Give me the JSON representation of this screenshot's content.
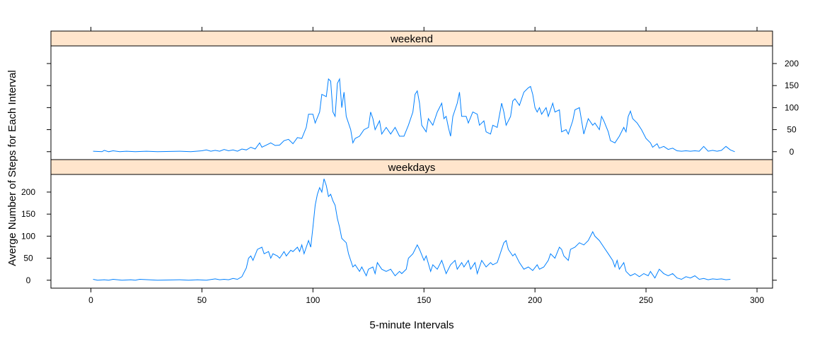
{
  "chart_data": {
    "type": "line",
    "xlabel": "5-minute Intervals",
    "ylabel": "Averge Number of Steps for Each Interval",
    "xlim": [
      -18,
      307
    ],
    "ylim": [
      -18,
      240
    ],
    "x_ticks": [
      0,
      50,
      100,
      150,
      200,
      250,
      300
    ],
    "y_ticks": [
      0,
      50,
      100,
      150,
      200
    ],
    "line_color": "#0080ff",
    "strip_color": "#ffe5cc",
    "panels": [
      {
        "strip_label": "weekend",
        "points": [
          [
            1,
            1
          ],
          [
            5,
            0
          ],
          [
            6,
            3
          ],
          [
            8,
            0
          ],
          [
            10,
            2
          ],
          [
            13,
            0
          ],
          [
            16,
            1
          ],
          [
            20,
            0
          ],
          [
            25,
            1
          ],
          [
            30,
            0
          ],
          [
            40,
            1
          ],
          [
            45,
            0
          ],
          [
            50,
            2
          ],
          [
            52,
            4
          ],
          [
            54,
            1
          ],
          [
            56,
            3
          ],
          [
            58,
            1
          ],
          [
            60,
            5
          ],
          [
            62,
            2
          ],
          [
            64,
            4
          ],
          [
            66,
            1
          ],
          [
            68,
            6
          ],
          [
            70,
            4
          ],
          [
            72,
            10
          ],
          [
            74,
            6
          ],
          [
            76,
            20
          ],
          [
            77,
            10
          ],
          [
            79,
            15
          ],
          [
            81,
            20
          ],
          [
            83,
            14
          ],
          [
            85,
            15
          ],
          [
            87,
            25
          ],
          [
            89,
            28
          ],
          [
            91,
            18
          ],
          [
            93,
            32
          ],
          [
            95,
            30
          ],
          [
            97,
            55
          ],
          [
            98,
            85
          ],
          [
            100,
            85
          ],
          [
            101,
            65
          ],
          [
            103,
            90
          ],
          [
            104,
            130
          ],
          [
            106,
            125
          ],
          [
            107,
            165
          ],
          [
            108,
            160
          ],
          [
            109,
            90
          ],
          [
            110,
            80
          ],
          [
            111,
            155
          ],
          [
            112,
            165
          ],
          [
            113,
            100
          ],
          [
            114,
            135
          ],
          [
            115,
            80
          ],
          [
            117,
            50
          ],
          [
            118,
            20
          ],
          [
            119,
            30
          ],
          [
            121,
            35
          ],
          [
            123,
            50
          ],
          [
            125,
            55
          ],
          [
            126,
            90
          ],
          [
            127,
            75
          ],
          [
            128,
            50
          ],
          [
            130,
            70
          ],
          [
            131,
            40
          ],
          [
            133,
            55
          ],
          [
            135,
            40
          ],
          [
            137,
            55
          ],
          [
            139,
            35
          ],
          [
            141,
            35
          ],
          [
            143,
            60
          ],
          [
            145,
            90
          ],
          [
            146,
            130
          ],
          [
            147,
            138
          ],
          [
            148,
            110
          ],
          [
            149,
            60
          ],
          [
            151,
            45
          ],
          [
            152,
            75
          ],
          [
            154,
            60
          ],
          [
            156,
            90
          ],
          [
            158,
            110
          ],
          [
            159,
            75
          ],
          [
            160,
            80
          ],
          [
            161,
            55
          ],
          [
            162,
            35
          ],
          [
            163,
            80
          ],
          [
            165,
            110
          ],
          [
            166,
            135
          ],
          [
            167,
            80
          ],
          [
            169,
            80
          ],
          [
            170,
            65
          ],
          [
            172,
            90
          ],
          [
            174,
            85
          ],
          [
            175,
            60
          ],
          [
            177,
            70
          ],
          [
            178,
            45
          ],
          [
            180,
            40
          ],
          [
            181,
            60
          ],
          [
            183,
            55
          ],
          [
            185,
            110
          ],
          [
            186,
            90
          ],
          [
            187,
            60
          ],
          [
            189,
            80
          ],
          [
            190,
            115
          ],
          [
            191,
            120
          ],
          [
            193,
            105
          ],
          [
            195,
            135
          ],
          [
            197,
            145
          ],
          [
            198,
            148
          ],
          [
            199,
            130
          ],
          [
            200,
            100
          ],
          [
            201,
            90
          ],
          [
            202,
            100
          ],
          [
            203,
            85
          ],
          [
            205,
            100
          ],
          [
            206,
            80
          ],
          [
            208,
            110
          ],
          [
            209,
            90
          ],
          [
            211,
            95
          ],
          [
            212,
            45
          ],
          [
            214,
            50
          ],
          [
            215,
            40
          ],
          [
            217,
            70
          ],
          [
            218,
            95
          ],
          [
            220,
            100
          ],
          [
            221,
            70
          ],
          [
            222,
            40
          ],
          [
            224,
            75
          ],
          [
            226,
            60
          ],
          [
            227,
            65
          ],
          [
            229,
            50
          ],
          [
            230,
            80
          ],
          [
            231,
            70
          ],
          [
            233,
            45
          ],
          [
            234,
            25
          ],
          [
            236,
            20
          ],
          [
            238,
            35
          ],
          [
            240,
            55
          ],
          [
            241,
            45
          ],
          [
            242,
            80
          ],
          [
            243,
            92
          ],
          [
            244,
            75
          ],
          [
            246,
            65
          ],
          [
            248,
            50
          ],
          [
            250,
            30
          ],
          [
            252,
            20
          ],
          [
            253,
            10
          ],
          [
            255,
            18
          ],
          [
            256,
            8
          ],
          [
            258,
            12
          ],
          [
            260,
            5
          ],
          [
            262,
            8
          ],
          [
            264,
            2
          ],
          [
            266,
            1
          ],
          [
            268,
            2
          ],
          [
            270,
            1
          ],
          [
            272,
            2
          ],
          [
            274,
            1
          ],
          [
            276,
            12
          ],
          [
            278,
            1
          ],
          [
            280,
            3
          ],
          [
            282,
            1
          ],
          [
            284,
            3
          ],
          [
            286,
            12
          ],
          [
            288,
            4
          ],
          [
            290,
            0
          ]
        ]
      },
      {
        "strip_label": "weekdays",
        "points": [
          [
            1,
            2
          ],
          [
            3,
            0
          ],
          [
            6,
            1
          ],
          [
            8,
            0
          ],
          [
            10,
            2
          ],
          [
            14,
            0
          ],
          [
            18,
            1
          ],
          [
            20,
            0
          ],
          [
            22,
            2
          ],
          [
            30,
            0
          ],
          [
            40,
            1
          ],
          [
            44,
            0
          ],
          [
            48,
            1
          ],
          [
            52,
            0
          ],
          [
            56,
            3
          ],
          [
            58,
            1
          ],
          [
            60,
            2
          ],
          [
            62,
            1
          ],
          [
            64,
            4
          ],
          [
            66,
            2
          ],
          [
            68,
            8
          ],
          [
            70,
            28
          ],
          [
            71,
            50
          ],
          [
            72,
            55
          ],
          [
            73,
            45
          ],
          [
            75,
            70
          ],
          [
            77,
            75
          ],
          [
            78,
            60
          ],
          [
            80,
            65
          ],
          [
            81,
            50
          ],
          [
            82,
            60
          ],
          [
            84,
            55
          ],
          [
            85,
            50
          ],
          [
            87,
            65
          ],
          [
            88,
            55
          ],
          [
            90,
            68
          ],
          [
            91,
            65
          ],
          [
            93,
            75
          ],
          [
            94,
            65
          ],
          [
            95,
            80
          ],
          [
            96,
            60
          ],
          [
            98,
            90
          ],
          [
            99,
            75
          ],
          [
            100,
            120
          ],
          [
            101,
            170
          ],
          [
            102,
            195
          ],
          [
            103,
            210
          ],
          [
            104,
            200
          ],
          [
            105,
            230
          ],
          [
            106,
            215
          ],
          [
            107,
            190
          ],
          [
            108,
            195
          ],
          [
            109,
            180
          ],
          [
            110,
            170
          ],
          [
            111,
            140
          ],
          [
            112,
            120
          ],
          [
            113,
            95
          ],
          [
            115,
            85
          ],
          [
            116,
            60
          ],
          [
            118,
            30
          ],
          [
            119,
            35
          ],
          [
            121,
            20
          ],
          [
            122,
            30
          ],
          [
            124,
            10
          ],
          [
            125,
            25
          ],
          [
            127,
            30
          ],
          [
            128,
            15
          ],
          [
            129,
            40
          ],
          [
            131,
            25
          ],
          [
            133,
            20
          ],
          [
            135,
            25
          ],
          [
            137,
            10
          ],
          [
            139,
            20
          ],
          [
            140,
            15
          ],
          [
            142,
            25
          ],
          [
            143,
            50
          ],
          [
            145,
            60
          ],
          [
            147,
            80
          ],
          [
            148,
            70
          ],
          [
            150,
            45
          ],
          [
            151,
            55
          ],
          [
            153,
            20
          ],
          [
            154,
            35
          ],
          [
            156,
            25
          ],
          [
            158,
            45
          ],
          [
            159,
            30
          ],
          [
            160,
            15
          ],
          [
            162,
            35
          ],
          [
            164,
            45
          ],
          [
            165,
            25
          ],
          [
            167,
            40
          ],
          [
            168,
            30
          ],
          [
            170,
            45
          ],
          [
            171,
            25
          ],
          [
            173,
            40
          ],
          [
            174,
            15
          ],
          [
            176,
            45
          ],
          [
            178,
            30
          ],
          [
            180,
            40
          ],
          [
            181,
            35
          ],
          [
            183,
            40
          ],
          [
            184,
            55
          ],
          [
            186,
            85
          ],
          [
            187,
            90
          ],
          [
            188,
            70
          ],
          [
            190,
            55
          ],
          [
            191,
            60
          ],
          [
            193,
            40
          ],
          [
            195,
            25
          ],
          [
            197,
            30
          ],
          [
            199,
            22
          ],
          [
            201,
            35
          ],
          [
            202,
            25
          ],
          [
            204,
            30
          ],
          [
            206,
            45
          ],
          [
            207,
            60
          ],
          [
            209,
            50
          ],
          [
            211,
            75
          ],
          [
            212,
            70
          ],
          [
            213,
            55
          ],
          [
            215,
            45
          ],
          [
            216,
            70
          ],
          [
            218,
            75
          ],
          [
            220,
            85
          ],
          [
            222,
            80
          ],
          [
            224,
            90
          ],
          [
            226,
            110
          ],
          [
            227,
            100
          ],
          [
            229,
            90
          ],
          [
            231,
            75
          ],
          [
            233,
            60
          ],
          [
            235,
            45
          ],
          [
            236,
            30
          ],
          [
            237,
            45
          ],
          [
            238,
            25
          ],
          [
            240,
            40
          ],
          [
            241,
            20
          ],
          [
            243,
            10
          ],
          [
            245,
            15
          ],
          [
            247,
            8
          ],
          [
            249,
            15
          ],
          [
            251,
            10
          ],
          [
            252,
            20
          ],
          [
            254,
            5
          ],
          [
            256,
            25
          ],
          [
            258,
            15
          ],
          [
            260,
            10
          ],
          [
            262,
            15
          ],
          [
            264,
            5
          ],
          [
            266,
            2
          ],
          [
            268,
            8
          ],
          [
            270,
            5
          ],
          [
            272,
            10
          ],
          [
            274,
            2
          ],
          [
            276,
            4
          ],
          [
            278,
            1
          ],
          [
            280,
            3
          ],
          [
            282,
            2
          ],
          [
            284,
            3
          ],
          [
            286,
            1
          ],
          [
            288,
            2
          ]
        ]
      }
    ]
  }
}
